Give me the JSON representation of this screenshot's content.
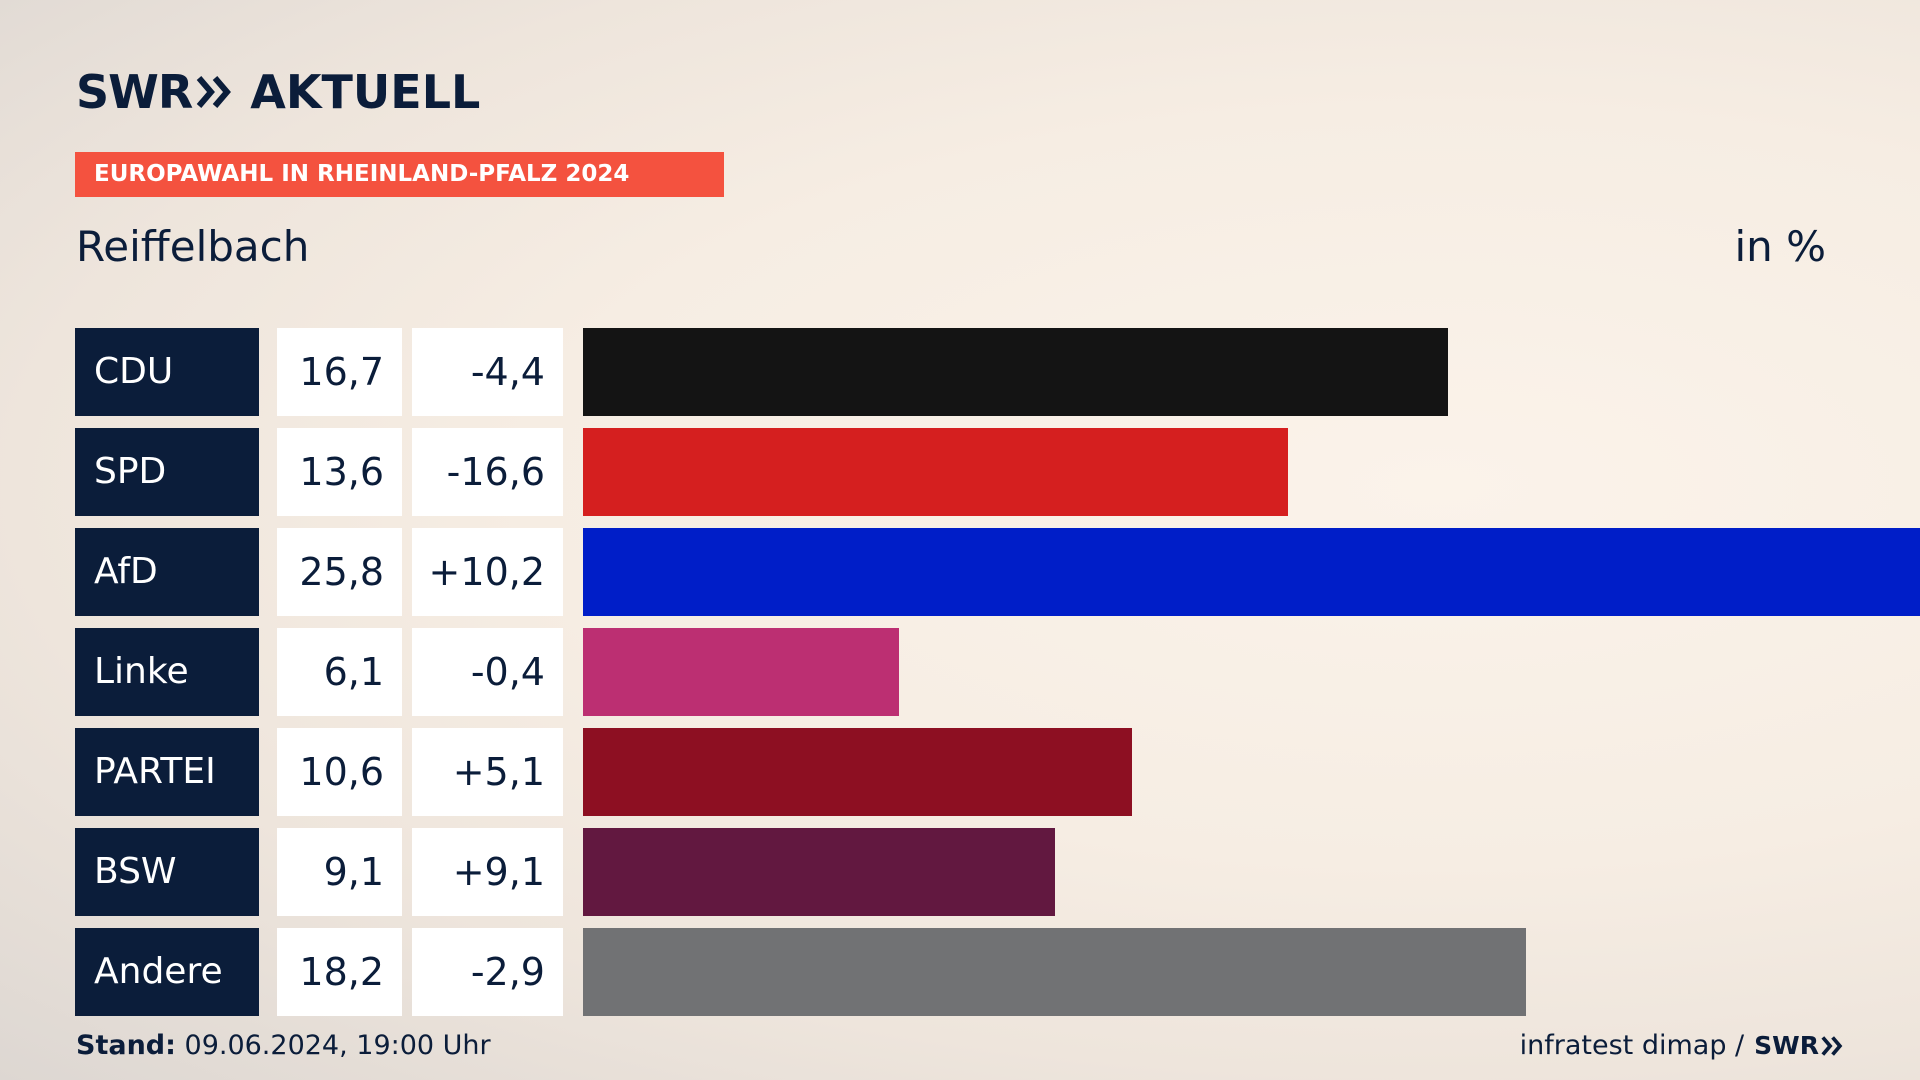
{
  "header": {
    "brand": "SWR",
    "brand_suffix": "AKTUELL",
    "banner": "EUROPAWAHL IN RHEINLAND-PFALZ 2024",
    "place": "Reiffelbach",
    "unit": "in %"
  },
  "footer": {
    "stand_label": "Stand:",
    "stand_value": "09.06.2024, 19:00 Uhr",
    "source": "infratest dimap /",
    "source_brand": "SWR"
  },
  "colors": {
    "navy": "#0b1d3a",
    "banner": "#f4523f"
  },
  "chart_data": {
    "type": "bar",
    "orientation": "horizontal",
    "categories": [
      "CDU",
      "SPD",
      "AfD",
      "Linke",
      "PARTEI",
      "BSW",
      "Andere"
    ],
    "values": [
      16.7,
      13.6,
      25.8,
      6.1,
      10.6,
      9.1,
      18.2
    ],
    "value_labels": [
      "16,7",
      "13,6",
      "25,8",
      "6,1",
      "10,6",
      "9,1",
      "18,2"
    ],
    "diff_labels": [
      "-4,4",
      "-16,6",
      "+10,2",
      "-0,4",
      "+5,1",
      "+9,1",
      "-2,9"
    ],
    "diffs": [
      -4.4,
      -16.6,
      10.2,
      -0.4,
      5.1,
      9.1,
      -2.9
    ],
    "bar_colors": [
      "#141414",
      "#d51f1f",
      "#001ec8",
      "#bc2f72",
      "#8d0f22",
      "#621840",
      "#717274"
    ],
    "title": "Reiffelbach",
    "unit": "in %",
    "grid": false,
    "legend": "none"
  }
}
